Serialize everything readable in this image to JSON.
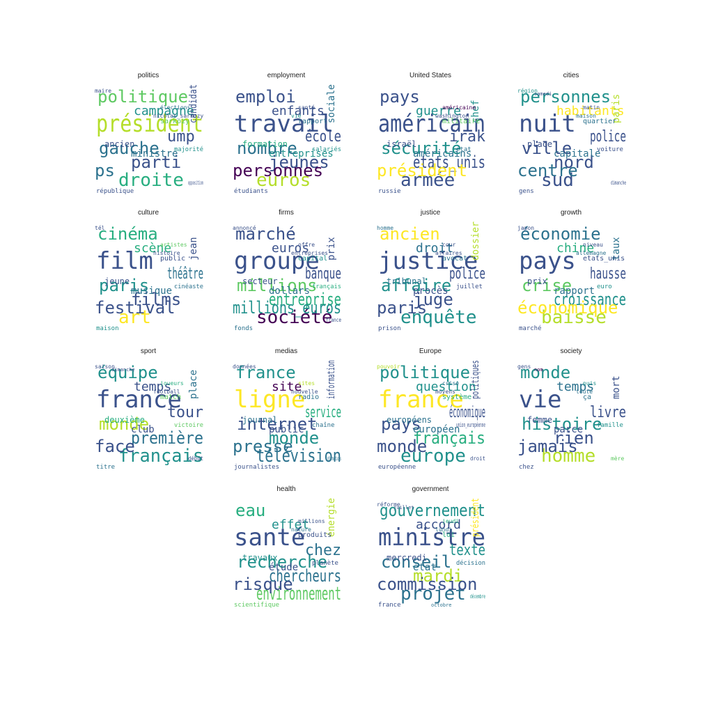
{
  "palette": [
    "#440154",
    "#3b528b",
    "#2c728e",
    "#21918c",
    "#28ae80",
    "#5ec962",
    "#b5de2b",
    "#fde725"
  ],
  "panels": [
    {
      "title": "politics",
      "words": [
        [
          "politique",
          5
        ],
        [
          "président",
          6
        ],
        [
          "gauche",
          2
        ],
        [
          "droite",
          4
        ],
        [
          "parti",
          1
        ],
        [
          "ps",
          2
        ],
        [
          "campagne",
          3
        ],
        [
          "ump",
          1
        ],
        [
          "ministre",
          2
        ],
        [
          "ancien",
          1
        ],
        [
          "candidat",
          1
        ],
        [
          "sarkozy",
          5
        ],
        [
          "république",
          1
        ],
        [
          "élections",
          2
        ],
        [
          "nicolas_sarkozy",
          1
        ],
        [
          "majorité",
          3
        ],
        [
          "maire",
          1
        ],
        [
          "opposition",
          1
        ]
      ]
    },
    {
      "title": "employment",
      "words": [
        [
          "emploi",
          1
        ],
        [
          "travail",
          1
        ],
        [
          "nombre",
          2
        ],
        [
          "euros",
          6
        ],
        [
          "jeunes",
          1
        ],
        [
          "personnes",
          0
        ],
        [
          "enfants",
          1
        ],
        [
          "école",
          1
        ],
        [
          "entreprises",
          3
        ],
        [
          "formation",
          4
        ],
        [
          "sociale",
          2
        ],
        [
          "rapport",
          2
        ],
        [
          "étudiants",
          1
        ],
        [
          "santé",
          1
        ],
        [
          "vie",
          3
        ],
        [
          "salariés",
          3
        ]
      ]
    },
    {
      "title": "United States",
      "words": [
        [
          "pays",
          1
        ],
        [
          "américain",
          1
        ],
        [
          "sécurité",
          3
        ],
        [
          "armée",
          1
        ],
        [
          "etats_unis",
          1
        ],
        [
          "président",
          7
        ],
        [
          "guerre",
          3
        ],
        [
          "irak",
          1
        ],
        [
          "américains",
          2
        ],
        [
          "israël",
          1
        ],
        [
          "chef",
          3
        ],
        [
          "militaire",
          5
        ],
        [
          "russie",
          1
        ],
        [
          "américaine",
          0
        ],
        [
          "washington",
          1
        ],
        [
          "état",
          2
        ]
      ]
    },
    {
      "title": "cities",
      "words": [
        [
          "personnes",
          3
        ],
        [
          "nuit",
          1
        ],
        [
          "ville",
          1
        ],
        [
          "sud",
          1
        ],
        [
          "nord",
          1
        ],
        [
          "centre",
          2
        ],
        [
          "habitants",
          7
        ],
        [
          "police",
          1
        ],
        [
          "capitale",
          2
        ],
        [
          "place",
          1
        ],
        [
          "paris",
          6
        ],
        [
          "quartier",
          2
        ],
        [
          "gens",
          1
        ],
        [
          "matin",
          1
        ],
        [
          "maison",
          2
        ],
        [
          "voiture",
          1
        ],
        [
          "région",
          3
        ],
        [
          "dimanche",
          1
        ],
        [
          "samedi",
          1
        ]
      ]
    },
    {
      "title": "culture",
      "words": [
        [
          "cinéma",
          4
        ],
        [
          "film",
          1
        ],
        [
          "paris",
          3
        ],
        [
          "art",
          7
        ],
        [
          "films",
          1
        ],
        [
          "festival",
          1
        ],
        [
          "scène",
          4
        ],
        [
          "théâtre",
          2
        ],
        [
          "musique",
          2
        ],
        [
          "jeune",
          1
        ],
        [
          "jean",
          1
        ],
        [
          "public",
          1
        ],
        [
          "maison",
          3
        ],
        [
          "artistes",
          5
        ],
        [
          "histoire",
          1
        ],
        [
          "cinéaste",
          2
        ],
        [
          "tél",
          1
        ]
      ]
    },
    {
      "title": "firms",
      "words": [
        [
          "marché",
          1
        ],
        [
          "groupe",
          1
        ],
        [
          "millions",
          5
        ],
        [
          "société",
          0
        ],
        [
          "entreprise",
          4
        ],
        [
          "millions_euros",
          3
        ],
        [
          "euros",
          1
        ],
        [
          "banque",
          1
        ],
        [
          "dollars",
          2
        ],
        [
          "secteur",
          1
        ],
        [
          "prix",
          1
        ],
        [
          "capital",
          3
        ],
        [
          "fonds",
          2
        ],
        [
          "offre",
          1
        ],
        [
          "entreprises",
          1
        ],
        [
          "français",
          4
        ],
        [
          "annoncé",
          1
        ],
        [
          "france",
          1
        ]
      ]
    },
    {
      "title": "justice",
      "words": [
        [
          "ancien",
          7
        ],
        [
          "justice",
          1
        ],
        [
          "affaire",
          3
        ],
        [
          "enquête",
          3
        ],
        [
          "juge",
          1
        ],
        [
          "paris",
          1
        ],
        [
          "droit",
          2
        ],
        [
          "police",
          1
        ],
        [
          "procès",
          1
        ],
        [
          "tribunal",
          2
        ],
        [
          "dossier",
          6
        ],
        [
          "avocat",
          2
        ],
        [
          "prison",
          1
        ],
        [
          "cour",
          1
        ],
        [
          "affaires",
          1
        ],
        [
          "juillet",
          1
        ],
        [
          "homme",
          2
        ]
      ]
    },
    {
      "title": "growth",
      "words": [
        [
          "économie",
          2
        ],
        [
          "pays",
          1
        ],
        [
          "crise",
          5
        ],
        [
          "baisse",
          6
        ],
        [
          "croissance",
          3
        ],
        [
          "économique",
          7
        ],
        [
          "chine",
          4
        ],
        [
          "hausse",
          1
        ],
        [
          "rapport",
          2
        ],
        [
          "prix",
          1
        ],
        [
          "taux",
          2
        ],
        [
          "etats_unis",
          1
        ],
        [
          "marché",
          1
        ],
        [
          "niveau",
          1
        ],
        [
          "allemagne",
          2
        ],
        [
          "euro",
          3
        ],
        [
          "japon",
          1
        ]
      ]
    },
    {
      "title": "sport",
      "words": [
        [
          "équipe",
          3
        ],
        [
          "france",
          1
        ],
        [
          "monde",
          6
        ],
        [
          "français",
          3
        ],
        [
          "première",
          2
        ],
        [
          "face",
          1
        ],
        [
          "temps",
          1
        ],
        [
          "tour",
          1
        ],
        [
          "club",
          1
        ],
        [
          "deuxième",
          4
        ],
        [
          "place",
          2
        ],
        [
          "match",
          5
        ],
        [
          "titre",
          2
        ],
        [
          "joueurs",
          4
        ],
        [
          "football",
          1
        ],
        [
          "victoire",
          5
        ],
        [
          "saison",
          1
        ],
        [
          "début",
          1
        ],
        [
          "dimanche",
          1
        ]
      ]
    },
    {
      "title": "medias",
      "words": [
        [
          "france",
          3
        ],
        [
          "ligne",
          7
        ],
        [
          "internet",
          1
        ],
        [
          "télévision",
          2
        ],
        [
          "monde",
          3
        ],
        [
          "presse",
          2
        ],
        [
          "site",
          0
        ],
        [
          "service",
          4
        ],
        [
          "public",
          1
        ],
        [
          "journal",
          2
        ],
        [
          "information",
          1
        ],
        [
          "radio",
          2
        ],
        [
          "journalistes",
          1
        ],
        [
          "sites",
          6
        ],
        [
          "nouvelle",
          1
        ],
        [
          "chaîne",
          2
        ],
        [
          "données",
          1
        ],
        [
          "informations",
          2
        ]
      ]
    },
    {
      "title": "Europe",
      "words": [
        [
          "politique",
          3
        ],
        [
          "france",
          7
        ],
        [
          "pays",
          1
        ],
        [
          "europe",
          3
        ],
        [
          "français",
          4
        ],
        [
          "monde",
          1
        ],
        [
          "question",
          3
        ],
        [
          "économique",
          1
        ],
        [
          "européen",
          2
        ],
        [
          "européens",
          2
        ],
        [
          "politiques",
          1
        ],
        [
          "système",
          4
        ],
        [
          "européenne",
          1
        ],
        [
          "crise",
          2
        ],
        [
          "moyens",
          1
        ],
        [
          "union_européenne",
          1
        ],
        [
          "pouvoir",
          6
        ],
        [
          "droit",
          1
        ]
      ]
    },
    {
      "title": "society",
      "words": [
        [
          "monde",
          3
        ],
        [
          "vie",
          1
        ],
        [
          "histoire",
          3
        ],
        [
          "homme",
          6
        ],
        [
          "rien",
          1
        ],
        [
          "jamais",
          1
        ],
        [
          "temps",
          2
        ],
        [
          "livre",
          1
        ],
        [
          "parce",
          1
        ],
        [
          "femme",
          1
        ],
        [
          "mort",
          1
        ],
        [
          "ça",
          2
        ],
        [
          "chez",
          1
        ],
        [
          "puis",
          3
        ],
        [
          "toute",
          2
        ],
        [
          "famille",
          3
        ],
        [
          "gens",
          1
        ],
        [
          "mère",
          5
        ],
        [
          "nom",
          0
        ]
      ]
    },
    {
      "title": "health",
      "words": [
        [
          "eau",
          4
        ],
        [
          "santé",
          1
        ],
        [
          "recherche",
          3
        ],
        [
          "environnement",
          5
        ],
        [
          "chercheurs",
          2
        ],
        [
          "risque",
          1
        ],
        [
          "effet",
          3
        ],
        [
          "chez",
          2
        ],
        [
          "étude",
          1
        ],
        [
          "travaux",
          3
        ],
        [
          "énergie",
          6
        ],
        [
          "produits",
          1
        ],
        [
          "scientifique",
          5
        ],
        [
          "millions",
          1
        ],
        [
          "nature",
          2
        ],
        [
          "planète",
          1
        ]
      ]
    },
    {
      "title": "government",
      "words": [
        [
          "gouvernement",
          3
        ],
        [
          "ministre",
          1
        ],
        [
          "conseil",
          2
        ],
        [
          "projet",
          2
        ],
        [
          "mardi",
          6
        ],
        [
          "commission",
          1
        ],
        [
          "accord",
          1
        ],
        [
          "texte",
          3
        ],
        [
          "état",
          2
        ],
        [
          "mercredi",
          1
        ],
        [
          "président",
          7
        ],
        [
          "loi",
          4
        ],
        [
          "france",
          1
        ],
        [
          "jeudi",
          4
        ],
        [
          "lundi",
          2
        ],
        [
          "décision",
          2
        ],
        [
          "réforme",
          1
        ],
        [
          "décembre",
          3
        ],
        [
          "juillet",
          1
        ],
        [
          "octobre",
          2
        ]
      ]
    }
  ]
}
